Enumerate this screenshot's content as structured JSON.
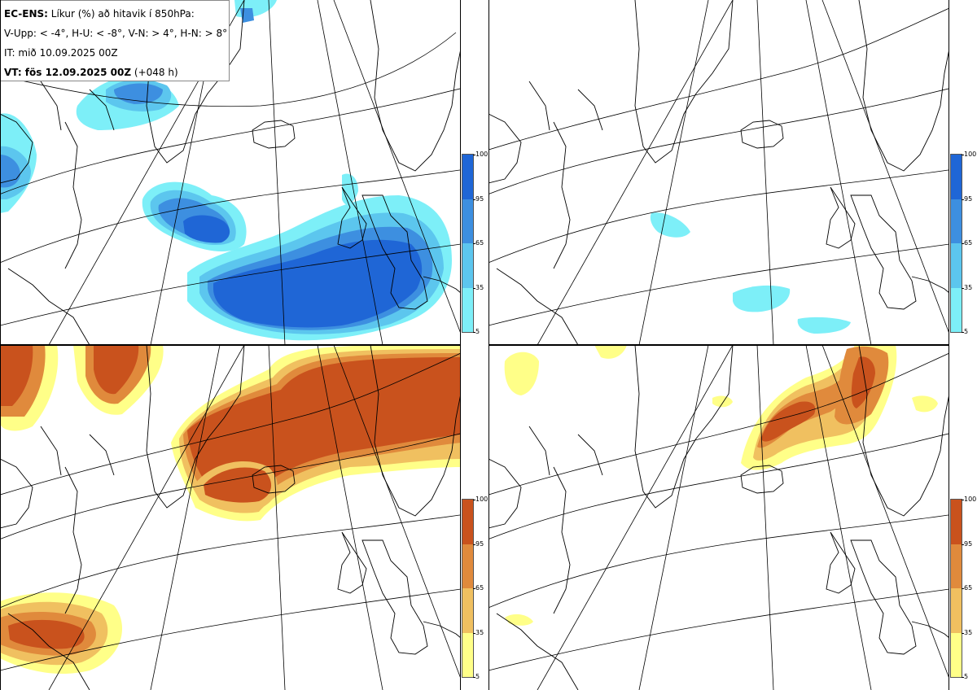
{
  "legend": {
    "model": "EC-ENS:",
    "title": "Líkur (%) að hitavik í 850hPa:",
    "thresholds": "V-Upp: < -4°, H-U: < -8°, V-N: > 4°, H-N: > 8°",
    "issue_time": "IT: mið 10.09.2025 00Z",
    "valid_label": "VT: fös 12.09.2025 00Z",
    "lead_time": "(+048 h)"
  },
  "colorbar_cold": {
    "ticks": [
      "100",
      "95",
      "65",
      "35",
      "5"
    ],
    "colors": [
      "#1f66d6",
      "#3d8fe0",
      "#5cc6ee",
      "#7deff8"
    ]
  },
  "colorbar_warm": {
    "ticks": [
      "100",
      "95",
      "65",
      "35",
      "5"
    ],
    "colors": [
      "#c9521d",
      "#e08a3c",
      "#f0c060",
      "#ffff88"
    ]
  },
  "panels": [
    {
      "name": "V-Upp",
      "scheme": "cold"
    },
    {
      "name": "H-U",
      "scheme": "cold"
    },
    {
      "name": "V-N",
      "scheme": "warm"
    },
    {
      "name": "H-N",
      "scheme": "warm"
    }
  ]
}
